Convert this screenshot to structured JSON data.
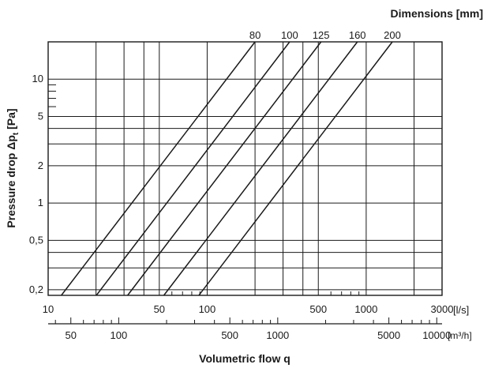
{
  "chart_data": {
    "type": "line",
    "title": "Dimensions  [mm]",
    "xlabel": "Volumetric flow q",
    "ylabel": "Pressure drop Δp",
    "ylabel_sub": "t",
    "ylabel_unit": " [Pa]",
    "x_unit": "[l/s]",
    "x2_unit": "[m³/h]",
    "x_scale": "log",
    "y_scale": "log",
    "xlim": [
      10,
      3000
    ],
    "ylim": [
      0.18,
      20
    ],
    "grid": true,
    "x_ticks": [
      10,
      20,
      30,
      40,
      50,
      100,
      200,
      300,
      400,
      500,
      1000,
      2000,
      3000
    ],
    "x_tick_labels": [
      {
        "value": 10,
        "label": "10"
      },
      {
        "value": 50,
        "label": "50"
      },
      {
        "value": 100,
        "label": "100"
      },
      {
        "value": 500,
        "label": "500"
      },
      {
        "value": 1000,
        "label": "1000"
      },
      {
        "value": 3000,
        "label": "3000"
      }
    ],
    "x2_tick_labels": [
      {
        "value": 50,
        "label": "50"
      },
      {
        "value": 100,
        "label": "100"
      },
      {
        "value": 500,
        "label": "500"
      },
      {
        "value": 1000,
        "label": "1000"
      },
      {
        "value": 5000,
        "label": "5000"
      },
      {
        "value": 10000,
        "label": "10000"
      }
    ],
    "x2_minor_ticks": [
      40,
      60,
      70,
      80,
      90,
      200,
      300,
      400,
      600,
      700,
      800,
      900,
      2000,
      3000,
      4000,
      6000,
      7000,
      8000,
      9000
    ],
    "y_gridlines": [
      0.2,
      0.3,
      0.4,
      0.5,
      1,
      2,
      3,
      4,
      5,
      10
    ],
    "y_tick_labels": [
      {
        "value": 0.2,
        "label": "0,2"
      },
      {
        "value": 0.5,
        "label": "0,5"
      },
      {
        "value": 1,
        "label": "1"
      },
      {
        "value": 2,
        "label": "2"
      },
      {
        "value": 5,
        "label": "5"
      },
      {
        "value": 10,
        "label": "10"
      }
    ],
    "y_minor_ticks": [
      6,
      7,
      8,
      9
    ],
    "series": [
      {
        "name": "80",
        "x": [
          12.1,
          200
        ],
        "y": [
          0.18,
          20
        ]
      },
      {
        "name": "100",
        "x": [
          20.1,
          330
        ],
        "y": [
          0.18,
          20
        ]
      },
      {
        "name": "125",
        "x": [
          31.6,
          520
        ],
        "y": [
          0.18,
          20
        ]
      },
      {
        "name": "160",
        "x": [
          53.4,
          880
        ],
        "y": [
          0.18,
          20
        ]
      },
      {
        "name": "200",
        "x": [
          88.7,
          1460
        ],
        "y": [
          0.18,
          20
        ]
      }
    ]
  }
}
